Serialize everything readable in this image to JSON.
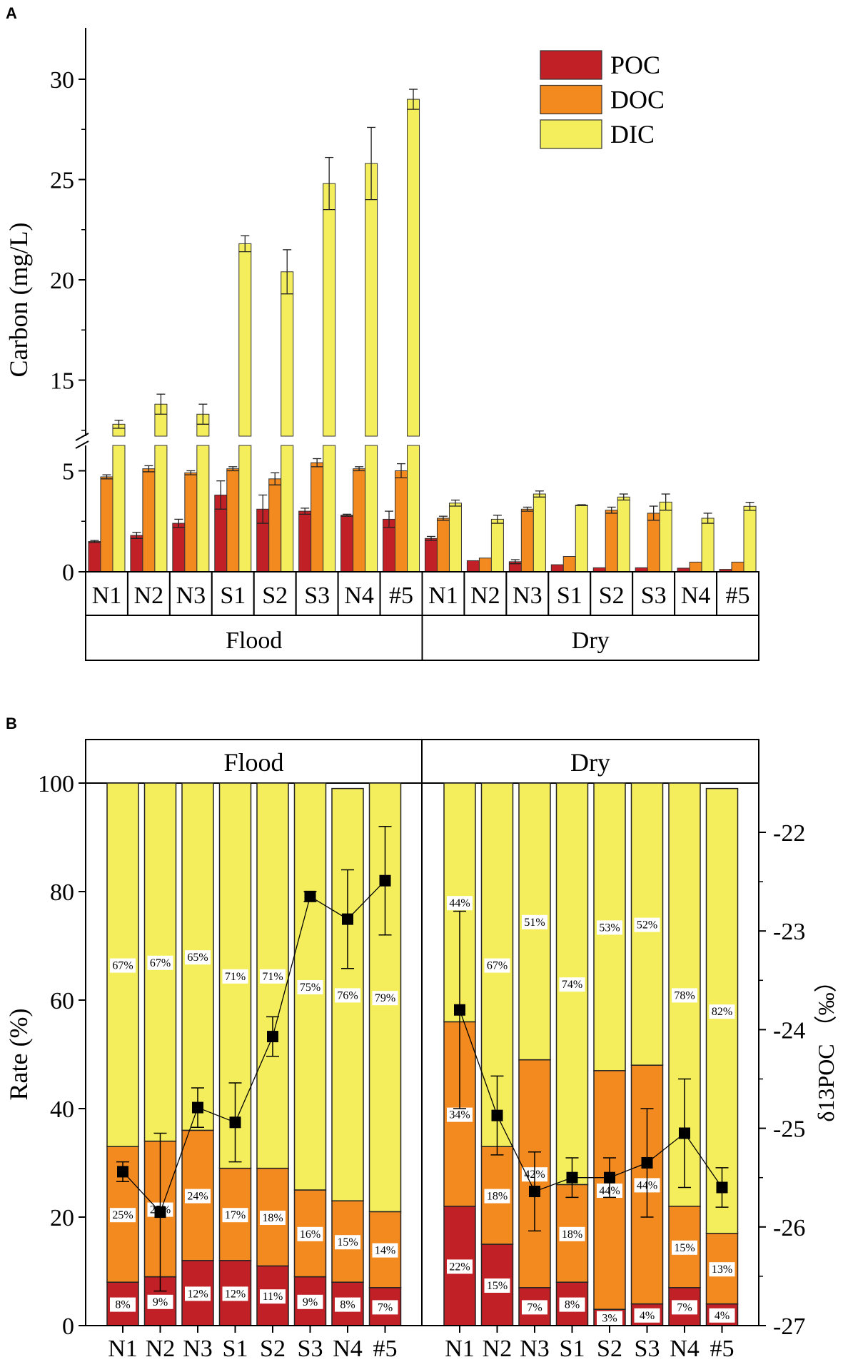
{
  "colors": {
    "POC": "#c02026",
    "DOC": "#f28a20",
    "DIC": "#f5ee5c",
    "line": "#000000"
  },
  "chart_data": [
    {
      "panel": "A",
      "type": "bar",
      "ylabel": "Carbon (mg/L)",
      "yticks_lower": [
        0,
        5
      ],
      "yticks_upper": [
        15,
        20,
        25,
        30
      ],
      "ylim_lower": [
        0,
        6
      ],
      "ylim_upper": [
        12.3,
        32.6
      ],
      "axis_break": true,
      "legend": [
        "POC",
        "DOC",
        "DIC"
      ],
      "legend_position": "top-right",
      "groups": [
        {
          "name": "Flood",
          "categories": [
            "N1",
            "N2",
            "N3",
            "S1",
            "S2",
            "S3",
            "N4",
            "#5"
          ],
          "series": [
            {
              "name": "POC",
              "values": [
                1.5,
                1.8,
                2.4,
                3.8,
                3.1,
                3.0,
                2.8,
                2.6
              ],
              "errors": [
                0.05,
                0.15,
                0.2,
                0.7,
                0.7,
                0.15,
                0.05,
                0.4
              ]
            },
            {
              "name": "DOC",
              "values": [
                4.7,
                5.1,
                4.9,
                5.1,
                4.6,
                5.4,
                5.1,
                5.0
              ],
              "errors": [
                0.1,
                0.15,
                0.1,
                0.1,
                0.3,
                0.2,
                0.1,
                0.35
              ]
            },
            {
              "name": "DIC",
              "values": [
                12.8,
                13.8,
                13.3,
                21.8,
                20.4,
                24.8,
                25.8,
                29.0
              ],
              "errors": [
                0.2,
                0.5,
                0.5,
                0.4,
                1.1,
                1.3,
                1.8,
                0.5
              ]
            }
          ]
        },
        {
          "name": "Dry",
          "categories": [
            "N1",
            "N2",
            "N3",
            "S1",
            "S2",
            "S3",
            "N4",
            "#5"
          ],
          "series": [
            {
              "name": "POC",
              "values": [
                1.65,
                0.55,
                0.5,
                0.35,
                0.2,
                0.2,
                0.18,
                0.12
              ],
              "errors": [
                0.1,
                0,
                0.1,
                0,
                0,
                0,
                0,
                0
              ]
            },
            {
              "name": "DOC",
              "values": [
                2.65,
                0.68,
                3.1,
                0.76,
                3.05,
                2.9,
                0.48,
                0.48
              ],
              "errors": [
                0.1,
                0,
                0.1,
                0,
                0.15,
                0.35,
                0,
                0
              ]
            },
            {
              "name": "DIC",
              "values": [
                3.4,
                2.6,
                3.85,
                3.3,
                3.7,
                3.45,
                2.65,
                3.24
              ],
              "errors": [
                0.15,
                0.2,
                0.15,
                0.02,
                0.15,
                0.4,
                0.25,
                0.2
              ]
            }
          ]
        }
      ]
    },
    {
      "panel": "B",
      "type": "bar",
      "stacked": true,
      "ylabel": "Rate (%)",
      "y2label": "δ13POC （‰）",
      "ylim": [
        0,
        100
      ],
      "yticks": [
        0,
        20,
        40,
        60,
        80,
        100
      ],
      "y2lim": [
        -27,
        -21.4
      ],
      "y2ticks": [
        -27,
        -26,
        -25,
        -24,
        -23,
        -22
      ],
      "groups": [
        {
          "name": "Flood",
          "categories": [
            "N1",
            "N2",
            "N3",
            "S1",
            "S2",
            "S3",
            "N4",
            "#5"
          ],
          "POC": [
            8,
            9,
            12,
            12,
            11,
            9,
            8,
            7
          ],
          "DOC": [
            25,
            25,
            24,
            17,
            18,
            16,
            15,
            14
          ],
          "DIC": [
            67,
            67,
            65,
            71,
            71,
            75,
            76,
            79
          ],
          "POC_labels": [
            "8%",
            "9%",
            "12%",
            "12%",
            "11%",
            "9%",
            "8%",
            "7%"
          ],
          "DOC_labels": [
            "25%",
            "25%",
            "24%",
            "17%",
            "18%",
            "16%",
            "15%",
            "14%"
          ],
          "DIC_labels": [
            "67%",
            "67%",
            "65%",
            "71%",
            "71%",
            "75%",
            "76%",
            "79%"
          ],
          "d13POC": [
            -25.44,
            -25.85,
            -24.79,
            -24.94,
            -24.07,
            -22.65,
            -22.88,
            -22.49
          ],
          "d13POC_err": [
            0.1,
            0.8,
            0.2,
            0.4,
            0.2,
            0.05,
            0.5,
            0.55
          ]
        },
        {
          "name": "Dry",
          "categories": [
            "N1",
            "N2",
            "N3",
            "S1",
            "S2",
            "S3",
            "N4",
            "#5"
          ],
          "POC": [
            22,
            15,
            7,
            8,
            3,
            4,
            7,
            4
          ],
          "DOC": [
            34,
            18,
            42,
            18,
            44,
            44,
            15,
            13
          ],
          "DIC": [
            44,
            67,
            51,
            74,
            53,
            52,
            78,
            82
          ],
          "POC_labels": [
            "22%",
            "15%",
            "7%",
            "8%",
            "3%",
            "4%",
            "7%",
            "4%"
          ],
          "DOC_labels": [
            "34%",
            "18%",
            "42%",
            "18%",
            "44%",
            "44%",
            "15%",
            "13%"
          ],
          "DIC_labels": [
            "44%",
            "67%",
            "51%",
            "74%",
            "53%",
            "52%",
            "78%",
            "82%"
          ],
          "d13POC": [
            -23.8,
            -24.87,
            -25.64,
            -25.5,
            -25.5,
            -25.35,
            -25.05,
            -25.6
          ],
          "d13POC_err": [
            1.0,
            0.4,
            0.4,
            0.2,
            0.2,
            0.55,
            0.55,
            0.2
          ]
        }
      ]
    }
  ],
  "panel_labels": [
    "A",
    "B"
  ]
}
